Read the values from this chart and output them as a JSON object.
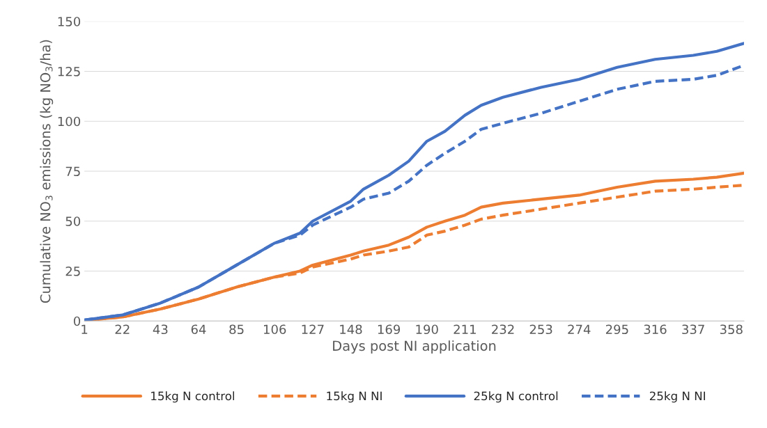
{
  "chart_data": {
    "type": "line",
    "xlabel": "Days post NI application",
    "ylabel": "Cumulative NO$_{3}$ emissions (kg NO$_{3}$/ha)",
    "x": [
      1,
      22,
      43,
      64,
      85,
      106,
      120,
      127,
      148,
      155,
      169,
      180,
      190,
      200,
      211,
      220,
      232,
      253,
      274,
      295,
      316,
      337,
      350,
      365
    ],
    "series": [
      {
        "name": "15kg N control",
        "color": "#ed7d31",
        "line_style": "solid",
        "values": [
          0.3,
          2,
          6,
          11,
          17,
          22,
          25,
          28,
          33,
          35,
          38,
          42,
          47,
          50,
          53,
          57,
          59,
          61,
          63,
          67,
          70,
          71,
          72,
          74
        ]
      },
      {
        "name": "15kg N NI",
        "color": "#ed7d31",
        "line_style": "dashed",
        "values": [
          0.3,
          2,
          6,
          11,
          17,
          22,
          24,
          27,
          31,
          33,
          35,
          37,
          43,
          45,
          48,
          51,
          53,
          56,
          59,
          62,
          65,
          66,
          67,
          68
        ]
      },
      {
        "name": "25kg N control",
        "color": "#4472c4",
        "line_style": "solid",
        "values": [
          0.5,
          3,
          9,
          17,
          28,
          39,
          44,
          50,
          60,
          66,
          73,
          80,
          90,
          95,
          103,
          108,
          112,
          117,
          121,
          127,
          131,
          133,
          135,
          139
        ]
      },
      {
        "name": "25kg N NI",
        "color": "#4472c4",
        "line_style": "dashed",
        "values": [
          0.5,
          3,
          9,
          17,
          28,
          39,
          43,
          48,
          57,
          61,
          64,
          70,
          78,
          84,
          90,
          96,
          99,
          104,
          110,
          116,
          120,
          121,
          123,
          128
        ]
      }
    ],
    "xlim": [
      1,
      365
    ],
    "xticks": [
      1,
      22,
      43,
      64,
      85,
      106,
      127,
      148,
      169,
      190,
      211,
      232,
      253,
      274,
      295,
      316,
      337,
      358
    ],
    "ylim": [
      0,
      150
    ],
    "yticks": [
      0,
      25,
      50,
      75,
      100,
      125,
      150
    ],
    "grid": "y",
    "legend": "bottom"
  }
}
